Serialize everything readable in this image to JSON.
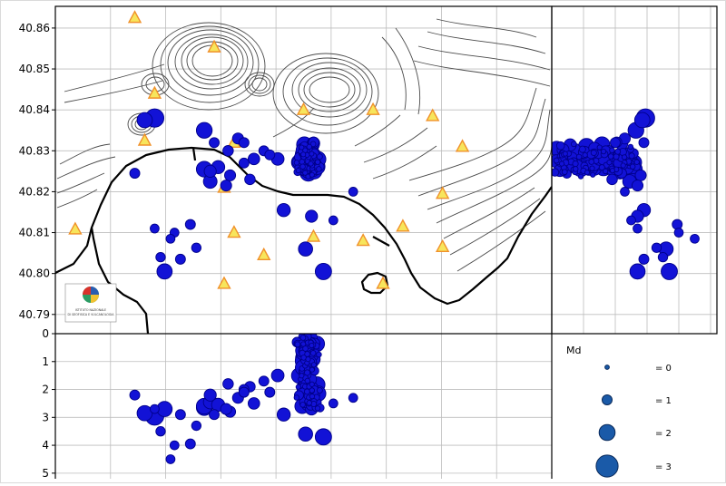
{
  "map": {
    "lat_ticks": [
      "40.86",
      "40.85",
      "40.84",
      "40.83",
      "40.82",
      "40.81",
      "40.80",
      "40.79"
    ],
    "lat_range": [
      40.7853,
      40.8653
    ],
    "lon_range": [
      14.0,
      14.25
    ],
    "logo_text": [
      "ISTITUTO NAZIONALE",
      "DI GEOFISICA E VULCANOLOGIA"
    ],
    "colors": {
      "event_fill": "#1212d6",
      "event_edge": "#00008a",
      "station_fill": "#f7e55c",
      "station_edge": "#f0912a",
      "coast": "#000000",
      "contour": "#4a4a4a",
      "grid": "#bdbdbd"
    }
  },
  "depth_section": {
    "depth_ticks": [
      "0",
      "1",
      "2",
      "3",
      "4",
      "5"
    ],
    "depth_range": [
      0,
      5.2
    ]
  },
  "legend": {
    "title": "Md",
    "entries": [
      {
        "label": "= 0",
        "md": 0
      },
      {
        "label": "= 1",
        "md": 1
      },
      {
        "label": "= 2",
        "md": 2
      },
      {
        "label": "= 3",
        "md": 3
      }
    ]
  },
  "stations": [
    {
      "lon": 14.04,
      "lat": 40.8625
    },
    {
      "lon": 14.08,
      "lat": 40.8553
    },
    {
      "lon": 14.05,
      "lat": 40.844
    },
    {
      "lon": 14.045,
      "lat": 40.8325
    },
    {
      "lon": 14.09,
      "lat": 40.832
    },
    {
      "lon": 14.125,
      "lat": 40.84
    },
    {
      "lon": 14.16,
      "lat": 40.84
    },
    {
      "lon": 14.19,
      "lat": 40.8385
    },
    {
      "lon": 14.205,
      "lat": 40.831
    },
    {
      "lon": 14.01,
      "lat": 40.8108
    },
    {
      "lon": 14.085,
      "lat": 40.821
    },
    {
      "lon": 14.09,
      "lat": 40.81
    },
    {
      "lon": 14.105,
      "lat": 40.8045
    },
    {
      "lon": 14.13,
      "lat": 40.809
    },
    {
      "lon": 14.155,
      "lat": 40.808
    },
    {
      "lon": 14.175,
      "lat": 40.8115
    },
    {
      "lon": 14.195,
      "lat": 40.8195
    },
    {
      "lon": 14.195,
      "lat": 40.8065
    },
    {
      "lon": 14.165,
      "lat": 40.7975
    },
    {
      "lon": 14.085,
      "lat": 40.7975
    }
  ],
  "events": [
    {
      "lon": 14.045,
      "lat": 40.8375,
      "depth": 2.85,
      "md": 2.0
    },
    {
      "lon": 14.05,
      "lat": 40.838,
      "depth": 2.95,
      "md": 2.6
    },
    {
      "lon": 14.075,
      "lat": 40.835,
      "depth": 2.65,
      "md": 2.1
    },
    {
      "lon": 14.04,
      "lat": 40.8245,
      "depth": 2.2,
      "md": 1.0
    },
    {
      "lon": 14.075,
      "lat": 40.8255,
      "depth": 2.6,
      "md": 2.1
    },
    {
      "lon": 14.078,
      "lat": 40.8225,
      "depth": 2.45,
      "md": 1.7
    },
    {
      "lon": 14.082,
      "lat": 40.826,
      "depth": 2.55,
      "md": 1.6
    },
    {
      "lon": 14.088,
      "lat": 40.824,
      "depth": 2.8,
      "md": 1.2
    },
    {
      "lon": 14.087,
      "lat": 40.83,
      "depth": 1.8,
      "md": 1.1
    },
    {
      "lon": 14.092,
      "lat": 40.833,
      "depth": 2.3,
      "md": 1.2
    },
    {
      "lon": 14.095,
      "lat": 40.832,
      "depth": 2.0,
      "md": 1.0
    },
    {
      "lon": 14.086,
      "lat": 40.8215,
      "depth": 2.7,
      "md": 1.2
    },
    {
      "lon": 14.078,
      "lat": 40.825,
      "depth": 2.2,
      "md": 1.4
    },
    {
      "lon": 14.095,
      "lat": 40.827,
      "depth": 2.1,
      "md": 1.0
    },
    {
      "lon": 14.098,
      "lat": 40.823,
      "depth": 1.9,
      "md": 1.1
    },
    {
      "lon": 14.1,
      "lat": 40.828,
      "depth": 2.5,
      "md": 1.3
    },
    {
      "lon": 14.105,
      "lat": 40.83,
      "depth": 1.7,
      "md": 1.0
    },
    {
      "lon": 14.08,
      "lat": 40.832,
      "depth": 2.9,
      "md": 1.0
    },
    {
      "lon": 14.05,
      "lat": 40.811,
      "depth": 2.7,
      "md": 0.8
    },
    {
      "lon": 14.055,
      "lat": 40.8005,
      "depth": 2.7,
      "md": 2.0
    },
    {
      "lon": 14.063,
      "lat": 40.8035,
      "depth": 2.9,
      "md": 1.0
    },
    {
      "lon": 14.071,
      "lat": 40.8063,
      "depth": 3.3,
      "md": 0.9
    },
    {
      "lon": 14.053,
      "lat": 40.804,
      "depth": 3.5,
      "md": 0.9
    },
    {
      "lon": 14.126,
      "lat": 40.806,
      "depth": 3.6,
      "md": 1.8
    },
    {
      "lon": 14.135,
      "lat": 40.8005,
      "depth": 3.7,
      "md": 2.2
    },
    {
      "lon": 14.115,
      "lat": 40.8155,
      "depth": 2.9,
      "md": 1.6
    },
    {
      "lon": 14.129,
      "lat": 40.814,
      "depth": 2.7,
      "md": 1.4
    },
    {
      "lon": 14.14,
      "lat": 40.813,
      "depth": 2.5,
      "md": 0.8
    },
    {
      "lon": 14.15,
      "lat": 40.82,
      "depth": 2.3,
      "md": 0.8
    },
    {
      "lon": 14.108,
      "lat": 40.829,
      "depth": 2.1,
      "md": 1.0
    },
    {
      "lon": 14.112,
      "lat": 40.828,
      "depth": 1.5,
      "md": 1.5
    },
    {
      "lon": 14.06,
      "lat": 40.81,
      "depth": 4.0,
      "md": 0.8
    },
    {
      "lon": 14.058,
      "lat": 40.8085,
      "depth": 4.5,
      "md": 0.8
    },
    {
      "lon": 14.068,
      "lat": 40.812,
      "depth": 3.95,
      "md": 1.0
    }
  ],
  "cluster": {
    "center_lon": 14.128,
    "center_lat": 40.8275,
    "spread_lon": 0.008,
    "spread_lat": 0.0055,
    "depth_min": 0.1,
    "depth_max": 2.7,
    "count": 130
  }
}
